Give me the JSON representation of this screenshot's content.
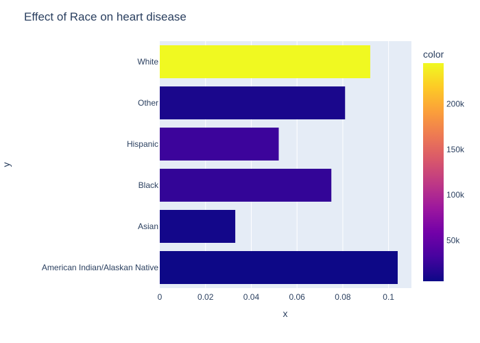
{
  "chart_data": {
    "type": "bar",
    "orientation": "horizontal",
    "title": "Effect of Race on heart disease",
    "xlabel": "x",
    "ylabel": "y",
    "xlim": [
      0,
      0.11
    ],
    "x_ticks": [
      0,
      0.02,
      0.04,
      0.06,
      0.08,
      0.1
    ],
    "x_tick_labels": [
      "0",
      "0.02",
      "0.04",
      "0.06",
      "0.08",
      "0.1"
    ],
    "categories": [
      "American Indian/Alaskan Native",
      "Asian",
      "Black",
      "Hispanic",
      "Other",
      "White"
    ],
    "values": [
      0.104,
      0.033,
      0.075,
      0.052,
      0.081,
      0.092
    ],
    "color_values": [
      5200,
      8000,
      23000,
      27000,
      11000,
      245000
    ],
    "colorbar": {
      "title": "color",
      "range": [
        5000,
        245000
      ],
      "ticks": [
        50000,
        100000,
        150000,
        200000
      ],
      "tick_labels": [
        "50k",
        "100k",
        "150k",
        "200k"
      ],
      "colorscale": [
        "#0d0887",
        "#46039f",
        "#7201a8",
        "#9c179e",
        "#bd3786",
        "#d8576b",
        "#ed7953",
        "#fb9f3a",
        "#fdca26",
        "#f0f921"
      ]
    },
    "plot_background": "#e5ecf6",
    "grid": true
  }
}
